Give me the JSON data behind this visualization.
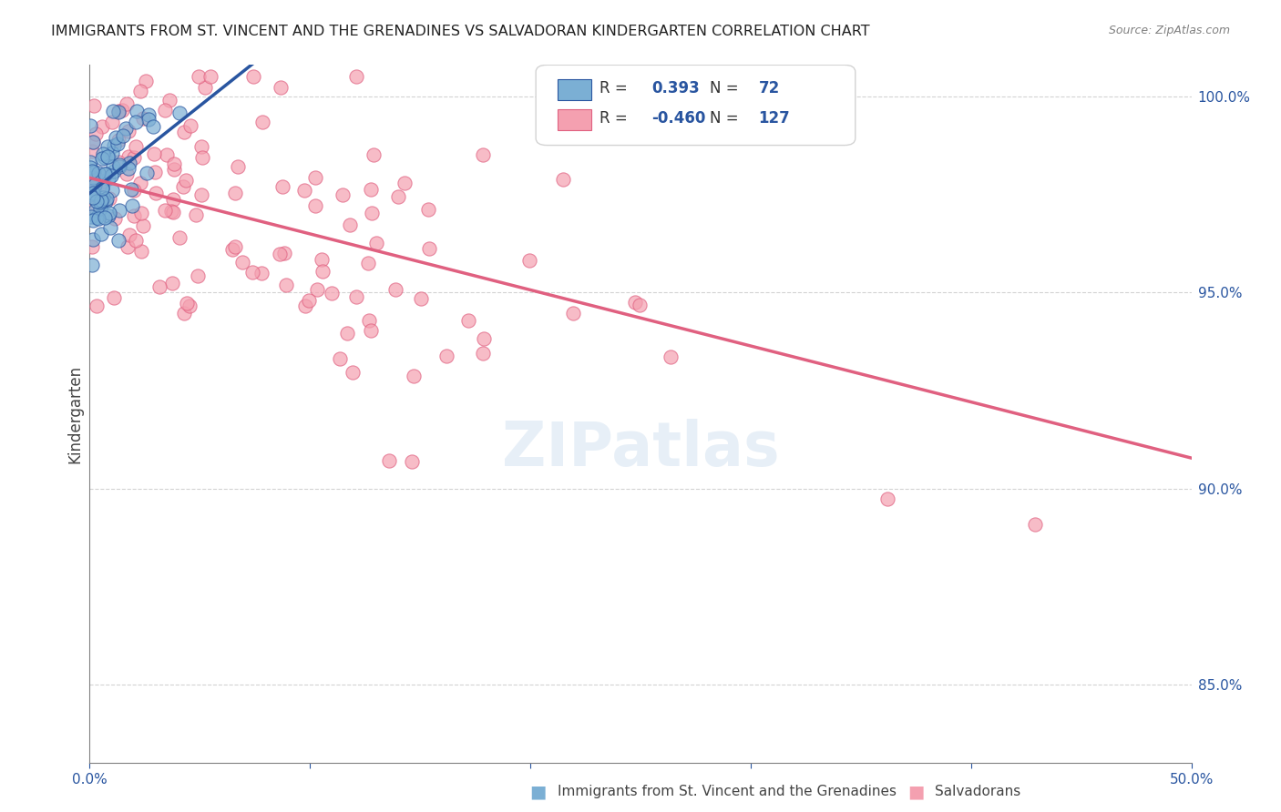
{
  "title": "IMMIGRANTS FROM ST. VINCENT AND THE GRENADINES VS SALVADORAN KINDERGARTEN CORRELATION CHART",
  "source": "Source: ZipAtlas.com",
  "ylabel": "Kindergarten",
  "blue_R": 0.393,
  "blue_N": 72,
  "pink_R": -0.46,
  "pink_N": 127,
  "blue_color": "#7bafd4",
  "pink_color": "#f4a0b0",
  "blue_line_color": "#2955a0",
  "pink_line_color": "#e06080",
  "legend_text_color": "#2955a0",
  "title_color": "#222222",
  "axis_label_color": "#2955a0",
  "watermark": "ZIPatlas"
}
